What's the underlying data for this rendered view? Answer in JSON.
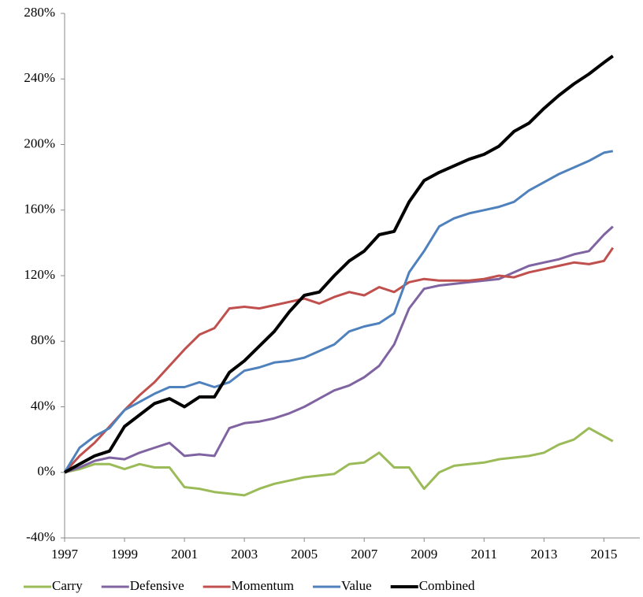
{
  "chart_data": {
    "type": "line",
    "x": [
      1997,
      1997.5,
      1998,
      1998.5,
      1999,
      1999.5,
      2000,
      2000.5,
      2001,
      2001.5,
      2002,
      2002.5,
      2003,
      2003.5,
      2004,
      2004.5,
      2005,
      2005.5,
      2006,
      2006.5,
      2007,
      2007.5,
      2008,
      2008.5,
      2009,
      2009.5,
      2010,
      2010.5,
      2011,
      2011.5,
      2012,
      2012.5,
      2013,
      2013.5,
      2014,
      2014.5,
      2015,
      2015.3
    ],
    "series": [
      {
        "name": "Carry",
        "color": "#9bbb59",
        "values": [
          0,
          2,
          5,
          5,
          2,
          5,
          3,
          3,
          -9,
          -10,
          -12,
          -13,
          -14,
          -10,
          -7,
          -5,
          -3,
          -2,
          -1,
          5,
          6,
          12,
          3,
          3,
          -10,
          0,
          4,
          5,
          6,
          8,
          9,
          10,
          12,
          17,
          20,
          27,
          22,
          19
        ]
      },
      {
        "name": "Defensive",
        "color": "#8064a2",
        "values": [
          0,
          3,
          7,
          9,
          8,
          12,
          15,
          18,
          10,
          11,
          10,
          27,
          30,
          31,
          33,
          36,
          40,
          45,
          50,
          53,
          58,
          65,
          78,
          100,
          112,
          114,
          115,
          116,
          117,
          118,
          122,
          126,
          128,
          130,
          133,
          135,
          145,
          150
        ]
      },
      {
        "name": "Momentum",
        "color": "#c0504d",
        "values": [
          0,
          10,
          18,
          28,
          38,
          47,
          55,
          65,
          75,
          84,
          88,
          100,
          101,
          100,
          102,
          104,
          106,
          103,
          107,
          110,
          108,
          113,
          110,
          116,
          118,
          117,
          117,
          117,
          118,
          120,
          119,
          122,
          124,
          126,
          128,
          127,
          129,
          137
        ]
      },
      {
        "name": "Value",
        "color": "#4f81bd",
        "values": [
          0,
          15,
          22,
          27,
          38,
          43,
          48,
          52,
          52,
          55,
          52,
          55,
          62,
          64,
          67,
          68,
          70,
          74,
          78,
          86,
          89,
          91,
          97,
          122,
          135,
          150,
          155,
          158,
          160,
          162,
          165,
          172,
          177,
          182,
          186,
          190,
          195,
          196
        ]
      },
      {
        "name": "Combined",
        "color": "#000000",
        "values": [
          0,
          5,
          10,
          13,
          28,
          35,
          42,
          45,
          40,
          46,
          46,
          61,
          68,
          77,
          86,
          98,
          108,
          110,
          120,
          129,
          135,
          145,
          147,
          165,
          178,
          183,
          187,
          191,
          194,
          199,
          208,
          213,
          222,
          230,
          237,
          243,
          250,
          254
        ]
      }
    ],
    "xlim": [
      1997,
      2016.2
    ],
    "xticks": [
      1997,
      1999,
      2001,
      2003,
      2005,
      2007,
      2009,
      2011,
      2013,
      2015
    ],
    "ylim": [
      -40,
      280
    ],
    "yticks": [
      {
        "value": -40,
        "label": "-40%"
      },
      {
        "value": 0,
        "label": "0%"
      },
      {
        "value": 40,
        "label": "40%"
      },
      {
        "value": 80,
        "label": "80%"
      },
      {
        "value": 120,
        "label": "120%"
      },
      {
        "value": 160,
        "label": "160%"
      },
      {
        "value": 200,
        "label": "200%"
      },
      {
        "value": 240,
        "label": "240%"
      },
      {
        "value": 280,
        "label": "280%"
      }
    ],
    "grid": false,
    "legend": "bottom"
  }
}
